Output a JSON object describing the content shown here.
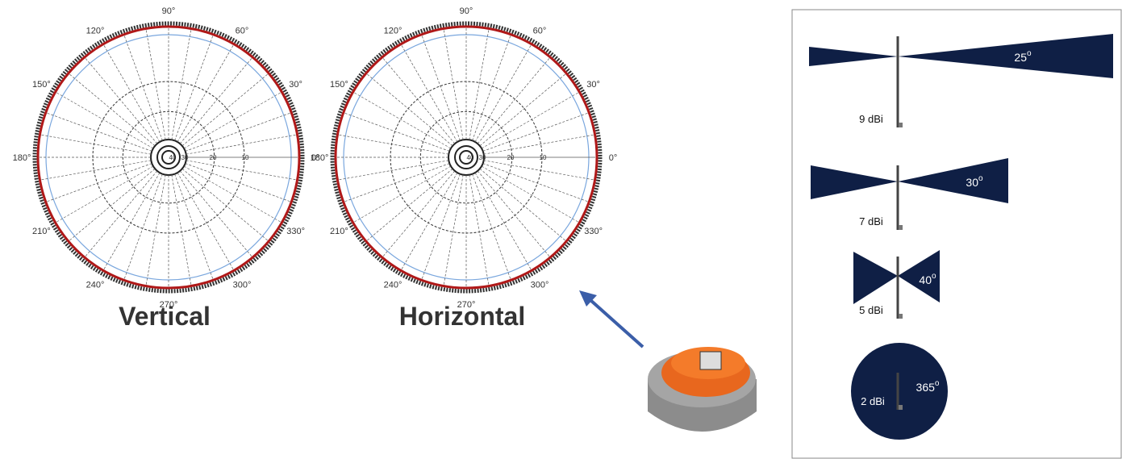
{
  "polar_plots": [
    {
      "title": "Vertical",
      "angle_labels": [
        "0°",
        "30°",
        "60°",
        "90°",
        "120°",
        "150°",
        "180°",
        "210°",
        "240°",
        "270°",
        "300°",
        "330°"
      ],
      "ring_labels": [
        "40",
        "30",
        "20",
        "10"
      ]
    },
    {
      "title": "Horizontal",
      "angle_labels": [
        "0°",
        "30°",
        "60°",
        "90°",
        "120°",
        "150°",
        "180°",
        "210°",
        "240°",
        "270°",
        "300°",
        "330°"
      ],
      "ring_labels": [
        "40",
        "30",
        "20",
        "10"
      ]
    }
  ],
  "antenna_patterns": [
    {
      "gain": "9 dBi",
      "angle": "25",
      "degree": "o"
    },
    {
      "gain": "7 dBi",
      "angle": "30",
      "degree": "o"
    },
    {
      "gain": "5 dBi",
      "angle": "40",
      "degree": "o"
    },
    {
      "gain": "2 dBi",
      "angle": "365",
      "degree": "o"
    }
  ]
}
